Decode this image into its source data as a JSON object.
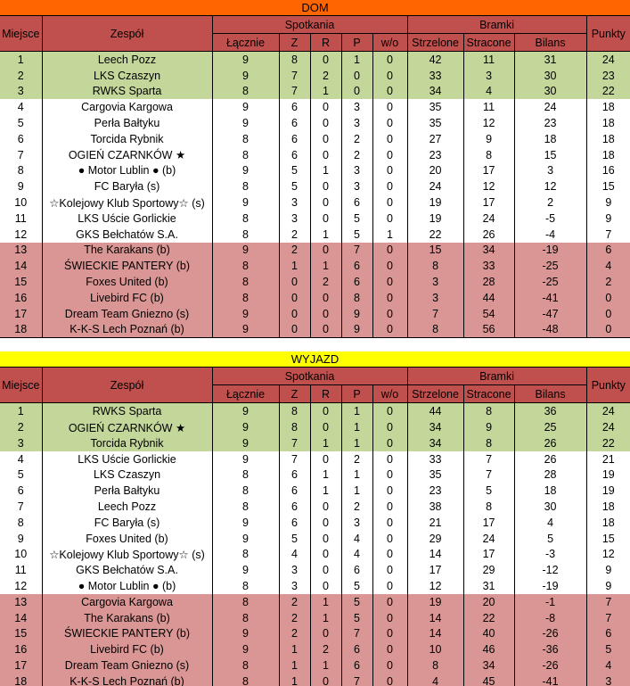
{
  "colors": {
    "dom_title_bg": "#FF6600",
    "wyjazd_title_bg": "#FFFF00",
    "header_bg": "#C0504D",
    "green_zone": "#C4D79B",
    "white_zone": "#FFFFFF",
    "pink_zone": "#D99694",
    "border": "#000000",
    "text": "#000000"
  },
  "headers": {
    "miejsce": "Miejsce",
    "zespol": "Zespół",
    "spotkania": "Spotkania",
    "lacznie": "Łącznie",
    "z": "Z",
    "r": "R",
    "p": "P",
    "wo": "w/o",
    "bramki": "Bramki",
    "strzelone": "Strzelone",
    "stracone": "Stracone",
    "bilans": "Bilans",
    "punkty": "Punkty"
  },
  "zones": {
    "green_through": 3,
    "pink_from": 13
  },
  "tables": [
    {
      "title": "DOM",
      "rows": [
        [
          1,
          "Leech Pozz",
          9,
          8,
          0,
          1,
          0,
          42,
          11,
          31,
          24
        ],
        [
          2,
          "LKS Czaszyn",
          9,
          7,
          2,
          0,
          0,
          33,
          3,
          30,
          23
        ],
        [
          3,
          "RWKS Sparta",
          8,
          7,
          1,
          0,
          0,
          34,
          4,
          30,
          22
        ],
        [
          4,
          "Cargovia Kargowa",
          9,
          6,
          0,
          3,
          0,
          35,
          11,
          24,
          18
        ],
        [
          5,
          "Perła Bałtyku",
          9,
          6,
          0,
          3,
          0,
          35,
          12,
          23,
          18
        ],
        [
          6,
          "Torcida Rybnik",
          8,
          6,
          0,
          2,
          0,
          27,
          9,
          18,
          18
        ],
        [
          7,
          "OGIEŃ CZARNKÓW ★",
          8,
          6,
          0,
          2,
          0,
          23,
          8,
          15,
          18
        ],
        [
          8,
          "● Motor Lublin ● (b)",
          9,
          5,
          1,
          3,
          0,
          20,
          17,
          3,
          16
        ],
        [
          9,
          "FC Baryła (s)",
          8,
          5,
          0,
          3,
          0,
          24,
          12,
          12,
          15
        ],
        [
          10,
          "☆Kolejowy Klub Sportowy☆ (s)",
          9,
          3,
          0,
          6,
          0,
          19,
          17,
          2,
          9
        ],
        [
          11,
          "LKS Uście Gorlickie",
          8,
          3,
          0,
          5,
          0,
          19,
          24,
          -5,
          9
        ],
        [
          12,
          "GKS Bełchatów S.A.",
          8,
          2,
          1,
          5,
          1,
          22,
          26,
          -4,
          7
        ],
        [
          13,
          "The Karakans (b)",
          9,
          2,
          0,
          7,
          0,
          15,
          34,
          -19,
          6
        ],
        [
          14,
          "ŚWIECKIE PANTERY (b)",
          8,
          1,
          1,
          6,
          0,
          8,
          33,
          -25,
          4
        ],
        [
          15,
          "Foxes United (b)",
          8,
          0,
          2,
          6,
          0,
          3,
          28,
          -25,
          2
        ],
        [
          16,
          "Livebird FC (b)",
          8,
          0,
          0,
          8,
          0,
          3,
          44,
          -41,
          0
        ],
        [
          17,
          "Dream Team Gniezno (s)",
          9,
          0,
          0,
          9,
          0,
          7,
          54,
          -47,
          0
        ],
        [
          18,
          "K-K-S Lech Poznań (b)",
          9,
          0,
          0,
          9,
          0,
          8,
          56,
          -48,
          0
        ]
      ]
    },
    {
      "title": "WYJAZD",
      "rows": [
        [
          1,
          "RWKS Sparta",
          9,
          8,
          0,
          1,
          0,
          44,
          8,
          36,
          24
        ],
        [
          2,
          "OGIEŃ CZARNKÓW ★",
          9,
          8,
          0,
          1,
          0,
          34,
          9,
          25,
          24
        ],
        [
          3,
          "Torcida Rybnik",
          9,
          7,
          1,
          1,
          0,
          34,
          8,
          26,
          22
        ],
        [
          4,
          "LKS Uście Gorlickie",
          9,
          7,
          0,
          2,
          0,
          33,
          7,
          26,
          21
        ],
        [
          5,
          "LKS Czaszyn",
          8,
          6,
          1,
          1,
          0,
          35,
          7,
          28,
          19
        ],
        [
          6,
          "Perła Bałtyku",
          8,
          6,
          1,
          1,
          0,
          23,
          5,
          18,
          19
        ],
        [
          7,
          "Leech Pozz",
          8,
          6,
          0,
          2,
          0,
          38,
          8,
          30,
          18
        ],
        [
          8,
          "FC Baryła (s)",
          9,
          6,
          0,
          3,
          0,
          21,
          17,
          4,
          18
        ],
        [
          9,
          "Foxes United (b)",
          9,
          5,
          0,
          4,
          0,
          29,
          24,
          5,
          15
        ],
        [
          10,
          "☆Kolejowy Klub Sportowy☆ (s)",
          8,
          4,
          0,
          4,
          0,
          14,
          17,
          -3,
          12
        ],
        [
          11,
          "GKS Bełchatów S.A.",
          9,
          3,
          0,
          6,
          0,
          17,
          29,
          -12,
          9
        ],
        [
          12,
          "● Motor Lublin ● (b)",
          8,
          3,
          0,
          5,
          0,
          12,
          31,
          -19,
          9
        ],
        [
          13,
          "Cargovia Kargowa",
          8,
          2,
          1,
          5,
          0,
          19,
          20,
          -1,
          7
        ],
        [
          14,
          "The Karakans (b)",
          8,
          2,
          1,
          5,
          0,
          14,
          22,
          -8,
          7
        ],
        [
          15,
          "ŚWIECKIE PANTERY (b)",
          9,
          2,
          0,
          7,
          0,
          14,
          40,
          -26,
          6
        ],
        [
          16,
          "Livebird FC (b)",
          9,
          1,
          2,
          6,
          0,
          10,
          46,
          -36,
          5
        ],
        [
          17,
          "Dream Team Gniezno (s)",
          8,
          1,
          1,
          6,
          0,
          8,
          34,
          -26,
          4
        ],
        [
          18,
          "K-K-S Lech Poznań (b)",
          8,
          1,
          0,
          7,
          0,
          4,
          45,
          -41,
          3
        ]
      ]
    }
  ]
}
